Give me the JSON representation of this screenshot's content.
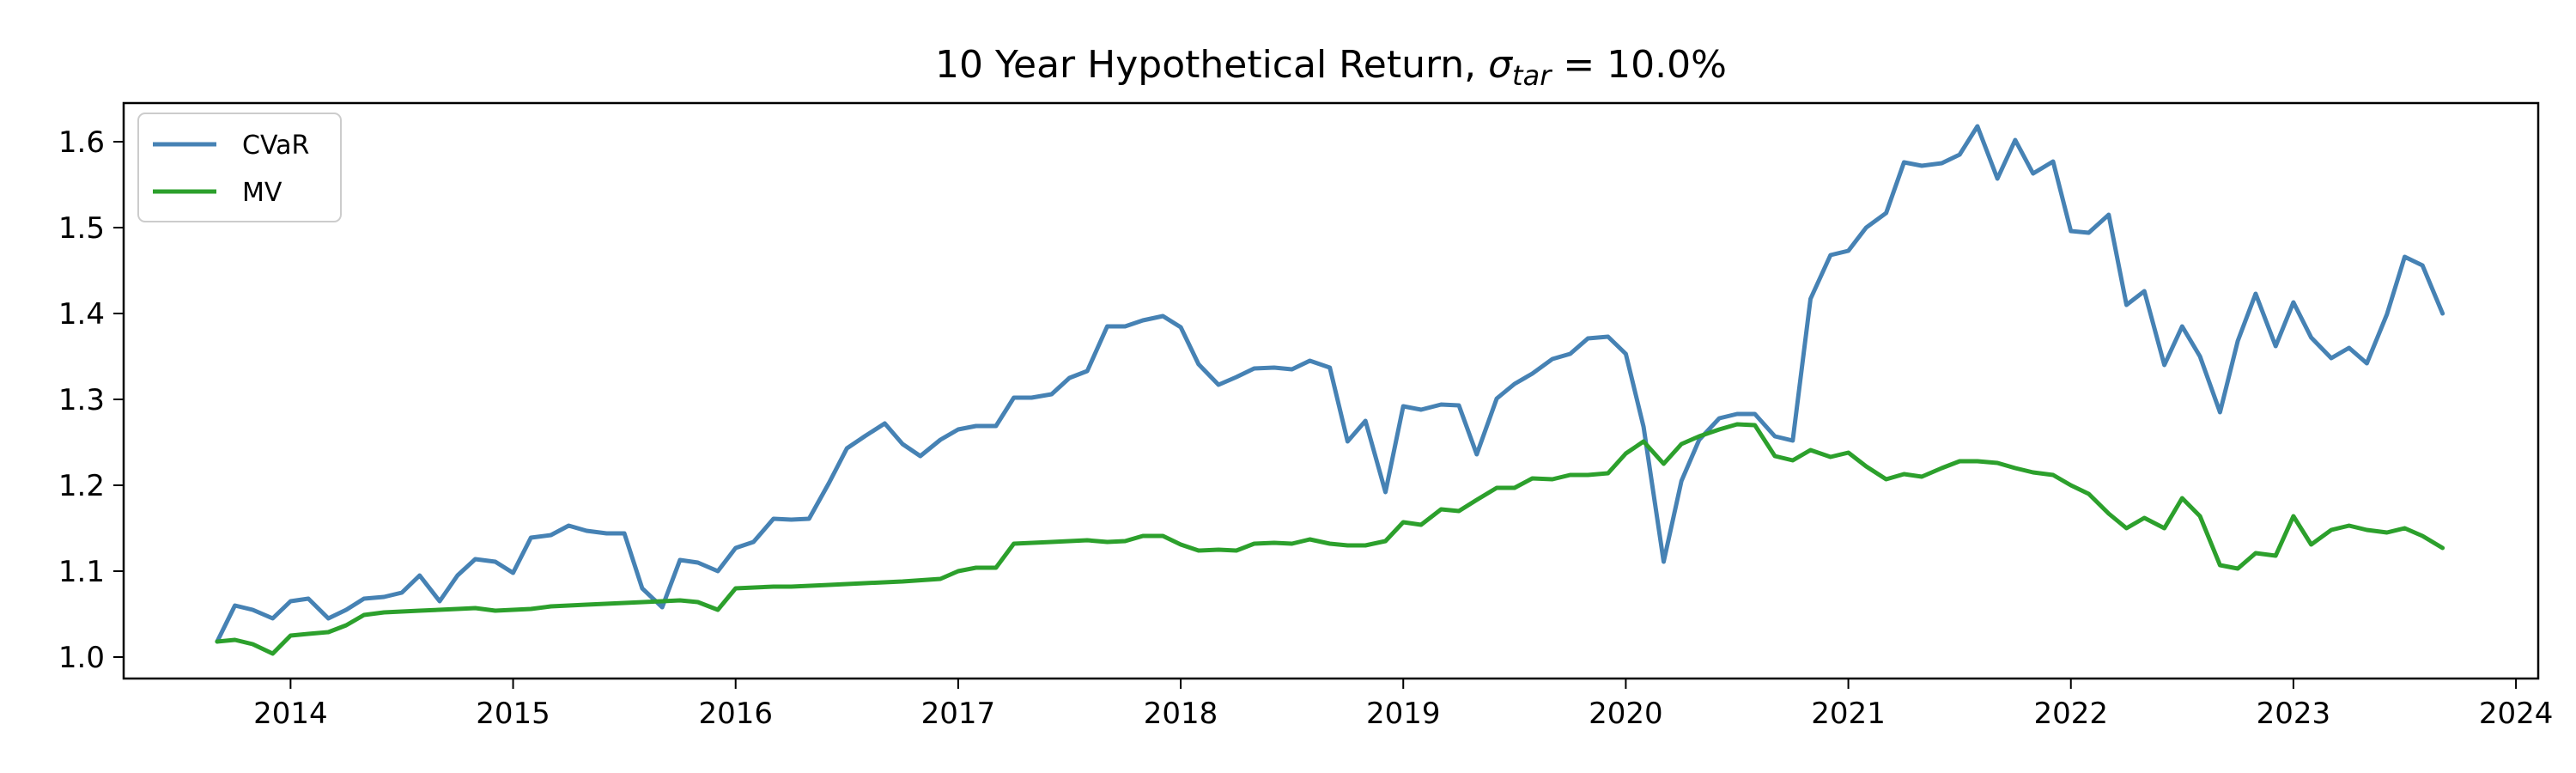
{
  "chart_data": {
    "type": "line",
    "title": "10 Year Hypothetical Return, ",
    "title_symbol": "σ",
    "title_subscript": "tar",
    "title_suffix": " = 10.0%",
    "xlabel": "",
    "ylabel": "",
    "xlim": [
      2013.25,
      2024.1
    ],
    "ylim": [
      0.975,
      1.645
    ],
    "x_ticks": [
      2014,
      2015,
      2016,
      2017,
      2018,
      2019,
      2020,
      2021,
      2022,
      2023,
      2024
    ],
    "x_tick_labels": [
      "2014",
      "2015",
      "2016",
      "2017",
      "2018",
      "2019",
      "2020",
      "2021",
      "2022",
      "2023",
      "2024"
    ],
    "y_ticks": [
      1.0,
      1.1,
      1.2,
      1.3,
      1.4,
      1.5,
      1.6
    ],
    "y_tick_labels": [
      "1.0",
      "1.1",
      "1.2",
      "1.3",
      "1.4",
      "1.5",
      "1.6"
    ],
    "grid": false,
    "legend_position": "upper-left",
    "series": [
      {
        "name": "CVaR",
        "color": "#4682b4",
        "points": [
          [
            2013.67,
            1.018
          ],
          [
            2013.75,
            1.06
          ],
          [
            2013.83,
            1.055
          ],
          [
            2013.92,
            1.045
          ],
          [
            2014.0,
            1.065
          ],
          [
            2014.08,
            1.068
          ],
          [
            2014.17,
            1.045
          ],
          [
            2014.25,
            1.055
          ],
          [
            2014.33,
            1.068
          ],
          [
            2014.42,
            1.07
          ],
          [
            2014.5,
            1.075
          ],
          [
            2014.58,
            1.095
          ],
          [
            2014.67,
            1.065
          ],
          [
            2014.75,
            1.095
          ],
          [
            2014.83,
            1.114
          ],
          [
            2014.92,
            1.111
          ],
          [
            2015.0,
            1.098
          ],
          [
            2015.08,
            1.139
          ],
          [
            2015.17,
            1.142
          ],
          [
            2015.25,
            1.153
          ],
          [
            2015.33,
            1.147
          ],
          [
            2015.42,
            1.144
          ],
          [
            2015.5,
            1.144
          ],
          [
            2015.58,
            1.08
          ],
          [
            2015.67,
            1.058
          ],
          [
            2015.75,
            1.113
          ],
          [
            2015.83,
            1.11
          ],
          [
            2015.92,
            1.1
          ],
          [
            2016.0,
            1.127
          ],
          [
            2016.08,
            1.134
          ],
          [
            2016.17,
            1.161
          ],
          [
            2016.25,
            1.16
          ],
          [
            2016.33,
            1.161
          ],
          [
            2016.42,
            1.203
          ],
          [
            2016.5,
            1.243
          ],
          [
            2016.58,
            1.257
          ],
          [
            2016.67,
            1.272
          ],
          [
            2016.75,
            1.248
          ],
          [
            2016.83,
            1.234
          ],
          [
            2016.92,
            1.253
          ],
          [
            2017.0,
            1.265
          ],
          [
            2017.08,
            1.269
          ],
          [
            2017.17,
            1.269
          ],
          [
            2017.25,
            1.302
          ],
          [
            2017.33,
            1.302
          ],
          [
            2017.42,
            1.306
          ],
          [
            2017.5,
            1.325
          ],
          [
            2017.58,
            1.333
          ],
          [
            2017.67,
            1.385
          ],
          [
            2017.75,
            1.385
          ],
          [
            2017.83,
            1.392
          ],
          [
            2017.92,
            1.397
          ],
          [
            2018.0,
            1.384
          ],
          [
            2018.08,
            1.341
          ],
          [
            2018.17,
            1.317
          ],
          [
            2018.25,
            1.326
          ],
          [
            2018.33,
            1.336
          ],
          [
            2018.42,
            1.337
          ],
          [
            2018.5,
            1.335
          ],
          [
            2018.58,
            1.345
          ],
          [
            2018.67,
            1.337
          ],
          [
            2018.75,
            1.251
          ],
          [
            2018.83,
            1.275
          ],
          [
            2018.92,
            1.192
          ],
          [
            2019.0,
            1.292
          ],
          [
            2019.08,
            1.288
          ],
          [
            2019.17,
            1.294
          ],
          [
            2019.25,
            1.293
          ],
          [
            2019.33,
            1.236
          ],
          [
            2019.42,
            1.301
          ],
          [
            2019.5,
            1.318
          ],
          [
            2019.58,
            1.33
          ],
          [
            2019.67,
            1.347
          ],
          [
            2019.75,
            1.353
          ],
          [
            2019.83,
            1.371
          ],
          [
            2019.92,
            1.373
          ],
          [
            2020.0,
            1.353
          ],
          [
            2020.08,
            1.268
          ],
          [
            2020.17,
            1.111
          ],
          [
            2020.25,
            1.205
          ],
          [
            2020.33,
            1.253
          ],
          [
            2020.42,
            1.278
          ],
          [
            2020.5,
            1.283
          ],
          [
            2020.58,
            1.283
          ],
          [
            2020.67,
            1.257
          ],
          [
            2020.75,
            1.252
          ],
          [
            2020.83,
            1.417
          ],
          [
            2020.92,
            1.468
          ],
          [
            2021.0,
            1.473
          ],
          [
            2021.08,
            1.5
          ],
          [
            2021.17,
            1.517
          ],
          [
            2021.25,
            1.576
          ],
          [
            2021.33,
            1.572
          ],
          [
            2021.42,
            1.575
          ],
          [
            2021.5,
            1.585
          ],
          [
            2021.58,
            1.618
          ],
          [
            2021.67,
            1.557
          ],
          [
            2021.75,
            1.602
          ],
          [
            2021.83,
            1.563
          ],
          [
            2021.92,
            1.577
          ],
          [
            2022.0,
            1.496
          ],
          [
            2022.08,
            1.494
          ],
          [
            2022.17,
            1.515
          ],
          [
            2022.25,
            1.41
          ],
          [
            2022.33,
            1.426
          ],
          [
            2022.42,
            1.34
          ],
          [
            2022.5,
            1.385
          ],
          [
            2022.58,
            1.35
          ],
          [
            2022.67,
            1.285
          ],
          [
            2022.75,
            1.368
          ],
          [
            2022.83,
            1.423
          ],
          [
            2022.92,
            1.362
          ],
          [
            2023.0,
            1.413
          ],
          [
            2023.08,
            1.372
          ],
          [
            2023.17,
            1.348
          ],
          [
            2023.25,
            1.36
          ],
          [
            2023.33,
            1.342
          ],
          [
            2023.42,
            1.399
          ],
          [
            2023.5,
            1.466
          ],
          [
            2023.58,
            1.456
          ],
          [
            2023.67,
            1.4
          ]
        ]
      },
      {
        "name": "MV",
        "color": "#2ca02c",
        "points": [
          [
            2013.67,
            1.018
          ],
          [
            2013.75,
            1.02
          ],
          [
            2013.83,
            1.015
          ],
          [
            2013.92,
            1.004
          ],
          [
            2014.0,
            1.025
          ],
          [
            2014.08,
            1.027
          ],
          [
            2014.17,
            1.029
          ],
          [
            2014.25,
            1.037
          ],
          [
            2014.33,
            1.049
          ],
          [
            2014.42,
            1.052
          ],
          [
            2014.58,
            1.054
          ],
          [
            2014.75,
            1.056
          ],
          [
            2014.83,
            1.057
          ],
          [
            2014.92,
            1.054
          ],
          [
            2015.08,
            1.056
          ],
          [
            2015.17,
            1.059
          ],
          [
            2015.33,
            1.061
          ],
          [
            2015.5,
            1.063
          ],
          [
            2015.67,
            1.065
          ],
          [
            2015.75,
            1.066
          ],
          [
            2015.83,
            1.064
          ],
          [
            2015.92,
            1.055
          ],
          [
            2016.0,
            1.08
          ],
          [
            2016.17,
            1.082
          ],
          [
            2016.25,
            1.082
          ],
          [
            2016.42,
            1.084
          ],
          [
            2016.58,
            1.086
          ],
          [
            2016.75,
            1.088
          ],
          [
            2016.92,
            1.091
          ],
          [
            2017.0,
            1.1
          ],
          [
            2017.08,
            1.104
          ],
          [
            2017.17,
            1.104
          ],
          [
            2017.25,
            1.132
          ],
          [
            2017.42,
            1.134
          ],
          [
            2017.58,
            1.136
          ],
          [
            2017.67,
            1.134
          ],
          [
            2017.75,
            1.135
          ],
          [
            2017.83,
            1.141
          ],
          [
            2017.92,
            1.141
          ],
          [
            2018.0,
            1.131
          ],
          [
            2018.08,
            1.124
          ],
          [
            2018.17,
            1.125
          ],
          [
            2018.25,
            1.124
          ],
          [
            2018.33,
            1.132
          ],
          [
            2018.42,
            1.133
          ],
          [
            2018.5,
            1.132
          ],
          [
            2018.58,
            1.137
          ],
          [
            2018.67,
            1.132
          ],
          [
            2018.75,
            1.13
          ],
          [
            2018.83,
            1.13
          ],
          [
            2018.92,
            1.135
          ],
          [
            2019.0,
            1.157
          ],
          [
            2019.08,
            1.154
          ],
          [
            2019.17,
            1.172
          ],
          [
            2019.25,
            1.17
          ],
          [
            2019.33,
            1.183
          ],
          [
            2019.42,
            1.197
          ],
          [
            2019.5,
            1.197
          ],
          [
            2019.58,
            1.208
          ],
          [
            2019.67,
            1.207
          ],
          [
            2019.75,
            1.212
          ],
          [
            2019.83,
            1.212
          ],
          [
            2019.92,
            1.214
          ],
          [
            2020.0,
            1.237
          ],
          [
            2020.08,
            1.251
          ],
          [
            2020.17,
            1.225
          ],
          [
            2020.25,
            1.248
          ],
          [
            2020.33,
            1.257
          ],
          [
            2020.42,
            1.265
          ],
          [
            2020.5,
            1.271
          ],
          [
            2020.58,
            1.27
          ],
          [
            2020.67,
            1.234
          ],
          [
            2020.75,
            1.229
          ],
          [
            2020.83,
            1.241
          ],
          [
            2020.92,
            1.233
          ],
          [
            2021.0,
            1.238
          ],
          [
            2021.08,
            1.222
          ],
          [
            2021.17,
            1.207
          ],
          [
            2021.25,
            1.213
          ],
          [
            2021.33,
            1.21
          ],
          [
            2021.42,
            1.22
          ],
          [
            2021.5,
            1.228
          ],
          [
            2021.58,
            1.228
          ],
          [
            2021.67,
            1.226
          ],
          [
            2021.75,
            1.22
          ],
          [
            2021.83,
            1.215
          ],
          [
            2021.92,
            1.212
          ],
          [
            2022.0,
            1.2
          ],
          [
            2022.08,
            1.19
          ],
          [
            2022.17,
            1.167
          ],
          [
            2022.25,
            1.15
          ],
          [
            2022.33,
            1.162
          ],
          [
            2022.42,
            1.15
          ],
          [
            2022.5,
            1.185
          ],
          [
            2022.58,
            1.164
          ],
          [
            2022.67,
            1.107
          ],
          [
            2022.75,
            1.103
          ],
          [
            2022.83,
            1.121
          ],
          [
            2022.92,
            1.118
          ],
          [
            2023.0,
            1.164
          ],
          [
            2023.08,
            1.131
          ],
          [
            2023.17,
            1.148
          ],
          [
            2023.25,
            1.153
          ],
          [
            2023.33,
            1.148
          ],
          [
            2023.42,
            1.145
          ],
          [
            2023.5,
            1.15
          ],
          [
            2023.58,
            1.141
          ],
          [
            2023.67,
            1.127
          ]
        ]
      }
    ]
  }
}
